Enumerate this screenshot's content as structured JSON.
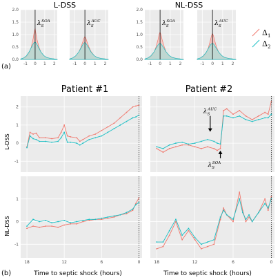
{
  "colors": {
    "delta1": "#f0776c",
    "delta2": "#19bfc4",
    "delta1_fill": "#f7b4ae",
    "delta2_fill": "#9ddfd8",
    "overlap_fill": "#c8ccb8"
  },
  "legend": {
    "items": [
      {
        "symbol": "Δ",
        "sub": "1",
        "color": "#f0776c"
      },
      {
        "symbol": "Δ",
        "sub": "2",
        "color": "#19bfc4"
      }
    ]
  },
  "panel_labels": {
    "a": "(a)",
    "b": "(b)"
  },
  "chart_data": [
    {
      "type": "area",
      "group": "L-DSS",
      "group_title": "L-DSS",
      "panel": "a1",
      "annotation": {
        "symbol": "λ",
        "sub": "S",
        "sup": "SOA"
      },
      "xlim": [
        -1.5,
        2.3
      ],
      "ylim": [
        0,
        2.0
      ],
      "xticks": [
        -1,
        0,
        1,
        2
      ],
      "yticks": [
        0,
        0.5,
        1.0,
        1.5,
        2.0
      ],
      "ytick_labels": [
        "0.0",
        "0.5",
        "1.0",
        "1.5",
        "2.0"
      ],
      "vline": 0,
      "series": [
        {
          "x": [
            -1.5,
            -1.2,
            -0.9,
            -0.6,
            -0.4,
            -0.2,
            -0.1,
            0,
            0.1,
            0.2,
            0.4,
            0.6,
            0.9,
            1.2,
            1.6,
            2.0,
            2.3
          ],
          "values": [
            0.02,
            0.05,
            0.12,
            0.28,
            0.5,
            0.85,
            1.1,
            1.25,
            1.0,
            0.8,
            0.5,
            0.3,
            0.15,
            0.08,
            0.04,
            0.02,
            0.01
          ]
        },
        {
          "x": [
            -1.5,
            -1.2,
            -0.9,
            -0.6,
            -0.4,
            -0.2,
            -0.1,
            0,
            0.1,
            0.2,
            0.4,
            0.6,
            0.9,
            1.2,
            1.6,
            2.0,
            2.3
          ],
          "values": [
            0.02,
            0.06,
            0.15,
            0.32,
            0.48,
            0.62,
            0.68,
            0.7,
            0.66,
            0.6,
            0.45,
            0.3,
            0.16,
            0.08,
            0.04,
            0.02,
            0.01
          ]
        }
      ]
    },
    {
      "type": "area",
      "group": "L-DSS",
      "panel": "a2",
      "annotation": {
        "symbol": "λ",
        "sub": "S",
        "sup": "AUC"
      },
      "xlim": [
        -1.5,
        2.3
      ],
      "ylim": [
        0,
        2.0
      ],
      "xticks": [
        -1,
        0,
        1,
        2
      ],
      "vline": 0,
      "series": [
        {
          "x": [
            -1.5,
            -1.2,
            -0.9,
            -0.6,
            -0.4,
            -0.2,
            -0.1,
            0,
            0.1,
            0.2,
            0.4,
            0.6,
            0.9,
            1.2,
            1.6,
            2.0,
            2.3
          ],
          "values": [
            0.02,
            0.06,
            0.14,
            0.3,
            0.48,
            0.72,
            0.85,
            0.92,
            0.85,
            0.72,
            0.5,
            0.32,
            0.16,
            0.08,
            0.04,
            0.02,
            0.01
          ]
        },
        {
          "x": [
            -1.5,
            -1.2,
            -0.9,
            -0.6,
            -0.4,
            -0.2,
            -0.1,
            0,
            0.1,
            0.2,
            0.4,
            0.6,
            0.9,
            1.2,
            1.6,
            2.0,
            2.3
          ],
          "values": [
            0.02,
            0.06,
            0.15,
            0.3,
            0.45,
            0.6,
            0.66,
            0.68,
            0.65,
            0.58,
            0.45,
            0.3,
            0.16,
            0.08,
            0.04,
            0.02,
            0.01
          ]
        }
      ]
    },
    {
      "type": "area",
      "group": "NL-DSS",
      "group_title": "NL-DSS",
      "panel": "a3",
      "annotation": {
        "symbol": "λ",
        "sub": "S",
        "sup": "SOA"
      },
      "xlim": [
        -1.5,
        2.3
      ],
      "ylim": [
        0,
        2.0
      ],
      "xticks": [
        -1,
        0,
        1,
        2
      ],
      "yticks": [
        0,
        0.5,
        1.0,
        1.5,
        2.0
      ],
      "ytick_labels": [
        "0.0",
        "0.5",
        "1.0",
        "1.5",
        "2.0"
      ],
      "vline": 0,
      "series": [
        {
          "x": [
            -1.5,
            -1.2,
            -0.9,
            -0.6,
            -0.4,
            -0.2,
            -0.1,
            0,
            0.1,
            0.2,
            0.4,
            0.6,
            0.9,
            1.2,
            1.6,
            2.0,
            2.3
          ],
          "values": [
            0.02,
            0.05,
            0.12,
            0.28,
            0.5,
            0.8,
            1.0,
            1.1,
            0.98,
            0.8,
            0.52,
            0.3,
            0.15,
            0.08,
            0.04,
            0.02,
            0.01
          ]
        },
        {
          "x": [
            -1.5,
            -1.2,
            -0.9,
            -0.6,
            -0.4,
            -0.2,
            -0.1,
            0,
            0.1,
            0.2,
            0.4,
            0.6,
            0.9,
            1.2,
            1.6,
            2.0,
            2.3
          ],
          "values": [
            0.02,
            0.06,
            0.15,
            0.3,
            0.45,
            0.58,
            0.63,
            0.65,
            0.62,
            0.56,
            0.44,
            0.3,
            0.16,
            0.08,
            0.04,
            0.02,
            0.01
          ]
        }
      ]
    },
    {
      "type": "area",
      "group": "NL-DSS",
      "panel": "a4",
      "annotation": {
        "symbol": "λ",
        "sub": "S",
        "sup": "AUC"
      },
      "xlim": [
        -1.5,
        2.3
      ],
      "ylim": [
        0,
        2.0
      ],
      "xticks": [
        -1,
        0,
        1,
        2
      ],
      "vline": 0,
      "series": [
        {
          "x": [
            -1.5,
            -1.2,
            -0.9,
            -0.6,
            -0.4,
            -0.2,
            -0.1,
            0,
            0.1,
            0.2,
            0.4,
            0.6,
            0.9,
            1.2,
            1.6,
            2.0,
            2.3
          ],
          "values": [
            0.02,
            0.05,
            0.12,
            0.28,
            0.48,
            0.78,
            0.95,
            1.05,
            0.95,
            0.78,
            0.5,
            0.3,
            0.15,
            0.08,
            0.04,
            0.02,
            0.01
          ]
        },
        {
          "x": [
            -1.5,
            -1.2,
            -0.9,
            -0.6,
            -0.4,
            -0.2,
            -0.1,
            0,
            0.1,
            0.2,
            0.4,
            0.6,
            0.9,
            1.2,
            1.6,
            2.0,
            2.3
          ],
          "values": [
            0.02,
            0.06,
            0.15,
            0.3,
            0.45,
            0.58,
            0.63,
            0.65,
            0.62,
            0.56,
            0.44,
            0.3,
            0.16,
            0.08,
            0.04,
            0.02,
            0.01
          ]
        }
      ]
    },
    {
      "type": "line",
      "panel": "b11",
      "column_title": "Patient #1",
      "row_label": "L-DSS",
      "xlim": [
        19,
        -0.5
      ],
      "ylim": [
        -1.6,
        2.6
      ],
      "xticks": [
        18,
        12,
        6,
        0
      ],
      "yticks": [
        -1,
        0,
        1,
        2
      ],
      "vline": 0,
      "series": [
        {
          "x": [
            18,
            17.5,
            17,
            16.5,
            16,
            15,
            14,
            13,
            12.5,
            12,
            11.5,
            11,
            10,
            9.5,
            9,
            8,
            7,
            6,
            5,
            4,
            3,
            2,
            1,
            0.5,
            0
          ],
          "values": [
            -0.2,
            0.6,
            0.5,
            0.55,
            0.3,
            0.3,
            0.25,
            0.3,
            0.6,
            1.0,
            0.4,
            0.35,
            0.3,
            0.1,
            0.2,
            0.4,
            0.5,
            0.7,
            0.9,
            1.1,
            1.4,
            1.7,
            2.0,
            2.05,
            2.1
          ]
        },
        {
          "x": [
            18,
            17.5,
            17,
            16.5,
            16,
            15,
            14,
            13,
            12.5,
            12,
            11.5,
            11,
            10,
            9.5,
            9,
            8,
            7,
            6,
            5,
            4,
            3,
            2,
            1,
            0.5,
            0
          ],
          "values": [
            -0.25,
            0.4,
            0.25,
            0.2,
            0.1,
            0.1,
            0.05,
            0.1,
            0.3,
            0.6,
            0.05,
            0.05,
            0.0,
            -0.1,
            0.0,
            0.2,
            0.3,
            0.4,
            0.6,
            0.8,
            1.0,
            1.2,
            1.4,
            1.45,
            1.55
          ]
        }
      ]
    },
    {
      "type": "line",
      "panel": "b12",
      "column_title": "Patient #2",
      "xlim": [
        19,
        -0.5
      ],
      "ylim": [
        -1.6,
        2.6
      ],
      "xticks": [
        18,
        12,
        6,
        0
      ],
      "vline": 0,
      "annotations": [
        {
          "symbol": "λ",
          "sub": "S",
          "sup": "AUC",
          "arrow": "down"
        },
        {
          "symbol": "λ",
          "sub": "S",
          "sup": "SOA",
          "arrow": "up"
        }
      ],
      "series": [
        {
          "x": [
            18,
            17,
            16,
            15,
            14,
            13,
            12,
            11,
            10,
            9,
            8.5,
            8,
            7.5,
            7,
            6,
            5,
            4,
            3,
            2,
            1,
            0.5,
            0
          ],
          "values": [
            -0.3,
            -0.5,
            -0.3,
            -0.2,
            -0.1,
            -0.1,
            -0.2,
            -0.3,
            -0.2,
            -0.3,
            -0.4,
            -0.3,
            1.8,
            1.9,
            1.6,
            1.8,
            1.5,
            1.3,
            1.5,
            1.7,
            1.6,
            2.3
          ]
        },
        {
          "x": [
            18,
            17,
            16,
            15,
            14,
            13,
            12,
            11,
            10,
            9,
            8.5,
            8,
            7.5,
            7,
            6,
            5,
            4,
            3,
            2,
            1,
            0.5,
            0
          ],
          "values": [
            -0.2,
            -0.3,
            -0.1,
            0.0,
            0.05,
            -0.05,
            0.0,
            0.1,
            0.2,
            0.1,
            0.0,
            -0.05,
            1.5,
            1.5,
            1.4,
            1.5,
            1.3,
            1.2,
            1.3,
            1.4,
            1.4,
            1.6
          ]
        }
      ]
    },
    {
      "type": "line",
      "panel": "b21",
      "row_label": "NL-DSS",
      "xlim": [
        19,
        -0.5
      ],
      "ylim": [
        -1.6,
        2.0
      ],
      "xticks": [
        18,
        12,
        6,
        0
      ],
      "yticks": [
        -1,
        0,
        1
      ],
      "xtick_labels": [
        "18",
        "12",
        "6",
        "0"
      ],
      "vline": 0,
      "series": [
        {
          "x": [
            18,
            17,
            16,
            15,
            14,
            13,
            12,
            11,
            10,
            9,
            8,
            7,
            6,
            5,
            4,
            3,
            2,
            1,
            0.5,
            0
          ],
          "values": [
            -0.3,
            -0.2,
            -0.25,
            -0.2,
            -0.2,
            -0.25,
            -0.15,
            -0.1,
            -0.1,
            0.0,
            0.05,
            0.1,
            0.1,
            0.15,
            0.2,
            0.3,
            0.35,
            0.5,
            0.8,
            1.05
          ]
        },
        {
          "x": [
            18,
            17,
            16,
            15,
            14,
            13,
            12,
            11,
            10,
            9,
            8,
            7,
            6,
            5,
            4,
            3,
            2,
            1,
            0.5,
            0
          ],
          "values": [
            -0.2,
            0.1,
            0.0,
            0.05,
            -0.05,
            0.0,
            0.05,
            -0.05,
            0.0,
            0.05,
            0.1,
            0.1,
            0.15,
            0.2,
            0.25,
            0.3,
            0.4,
            0.55,
            0.75,
            0.85
          ]
        }
      ]
    },
    {
      "type": "line",
      "panel": "b22",
      "xlim": [
        19,
        -0.5
      ],
      "ylim": [
        -1.6,
        2.0
      ],
      "xticks": [
        18,
        12,
        6,
        0
      ],
      "xtick_labels": [
        "18",
        "12",
        "6",
        "0"
      ],
      "vline": 0,
      "series": [
        {
          "x": [
            18,
            17,
            16,
            15,
            14,
            13,
            12,
            11,
            10,
            9,
            8,
            7.5,
            7,
            6,
            5,
            4.5,
            4,
            3.5,
            3,
            2,
            1,
            0.5,
            0
          ],
          "values": [
            -1.2,
            -1.1,
            -0.6,
            0.0,
            -0.8,
            -0.4,
            -0.8,
            -1.2,
            -1.1,
            -1.0,
            0.1,
            0.6,
            0.3,
            0.0,
            1.3,
            0.5,
            0.0,
            0.2,
            0.0,
            0.4,
            1.0,
            0.5,
            1.1
          ]
        },
        {
          "x": [
            18,
            17,
            16,
            15,
            14,
            13,
            12,
            11,
            10,
            9,
            8,
            7.5,
            7,
            6,
            5,
            4.5,
            4,
            3.5,
            3,
            2,
            1,
            0.5,
            0
          ],
          "values": [
            -0.9,
            -0.9,
            -0.4,
            0.1,
            -0.6,
            -0.3,
            -0.7,
            -1.0,
            -0.9,
            -0.8,
            0.2,
            0.5,
            0.3,
            0.1,
            1.0,
            0.4,
            0.1,
            0.3,
            0.0,
            0.4,
            0.8,
            0.6,
            1.0
          ]
        }
      ]
    }
  ],
  "xlabel": "Time to septic shock (hours)"
}
